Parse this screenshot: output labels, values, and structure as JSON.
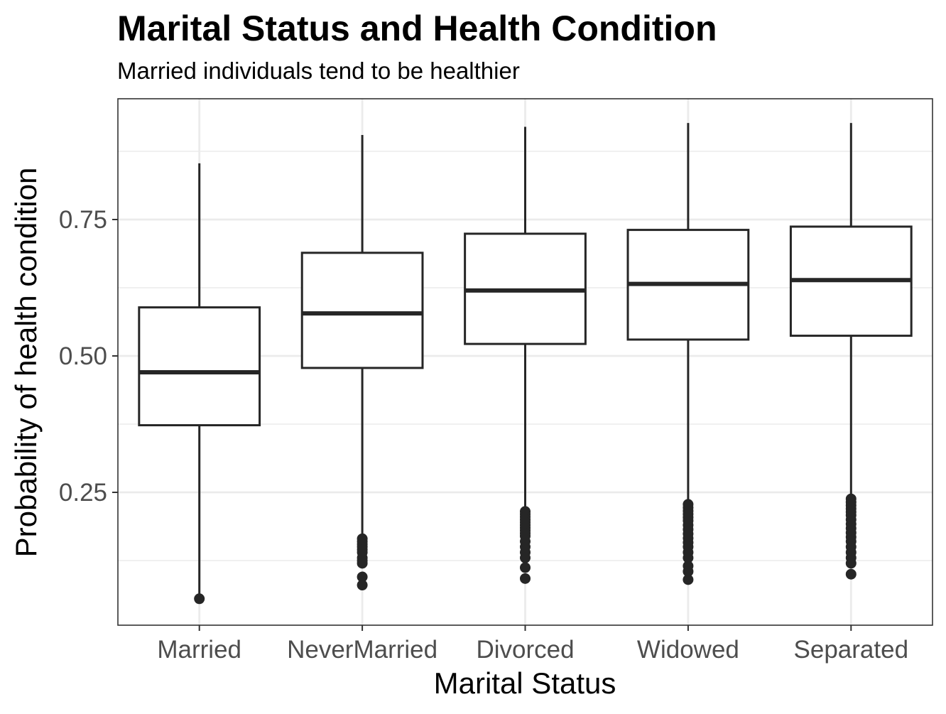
{
  "chart_data": {
    "type": "boxplot",
    "title": "Marital Status and Health Condition",
    "subtitle": "Married individuals tend to be healthier",
    "xlabel": "Marital Status",
    "ylabel": "Probability of health condition",
    "categories": [
      "Married",
      "NeverMarried",
      "Divorced",
      "Widowed",
      "Separated"
    ],
    "ylim": [
      0.03,
      0.95
    ],
    "yticks": [
      0.25,
      0.5,
      0.75
    ],
    "ytick_labels": [
      "0.25",
      "0.50",
      "0.75"
    ],
    "grid": true,
    "boxes": [
      {
        "category": "Married",
        "whisker_low": 0.055,
        "q1": 0.373,
        "median": 0.47,
        "q3": 0.589,
        "whisker_high": 0.853,
        "outliers": [
          0.055
        ]
      },
      {
        "category": "NeverMarried",
        "whisker_low": 0.165,
        "q1": 0.478,
        "median": 0.578,
        "q3": 0.689,
        "whisker_high": 0.905,
        "outliers": [
          0.165,
          0.16,
          0.155,
          0.15,
          0.145,
          0.14,
          0.13,
          0.125,
          0.12,
          0.095,
          0.08
        ]
      },
      {
        "category": "Divorced",
        "whisker_low": 0.22,
        "q1": 0.522,
        "median": 0.62,
        "q3": 0.724,
        "whisker_high": 0.92,
        "outliers": [
          0.215,
          0.21,
          0.205,
          0.2,
          0.195,
          0.19,
          0.185,
          0.18,
          0.175,
          0.17,
          0.16,
          0.15,
          0.14,
          0.13,
          0.112,
          0.092
        ]
      },
      {
        "category": "Widowed",
        "whisker_low": 0.232,
        "q1": 0.53,
        "median": 0.632,
        "q3": 0.731,
        "whisker_high": 0.927,
        "outliers": [
          0.228,
          0.222,
          0.216,
          0.21,
          0.204,
          0.198,
          0.19,
          0.182,
          0.174,
          0.166,
          0.158,
          0.15,
          0.14,
          0.13,
          0.115,
          0.105,
          0.09
        ]
      },
      {
        "category": "Separated",
        "whisker_low": 0.242,
        "q1": 0.537,
        "median": 0.639,
        "q3": 0.737,
        "whisker_high": 0.927,
        "outliers": [
          0.238,
          0.232,
          0.226,
          0.22,
          0.214,
          0.208,
          0.2,
          0.192,
          0.184,
          0.176,
          0.168,
          0.16,
          0.15,
          0.14,
          0.13,
          0.12,
          0.1
        ]
      }
    ],
    "colors": {
      "box_stroke": "#262626",
      "panel_border": "#333333",
      "grid_major": "#ebebeb",
      "grid_minor": "#ebebeb",
      "tick_label": "#4d4d4d",
      "background": "#ffffff"
    }
  }
}
